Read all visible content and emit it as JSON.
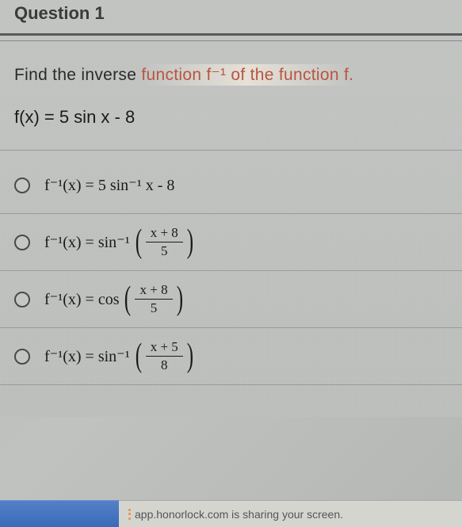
{
  "header": {
    "title": "Question 1"
  },
  "prompt": {
    "prefix": "Find the inverse ",
    "highlighted": "function f⁻¹ of the function f."
  },
  "function_def": "f(x) = 5 sin x - 8",
  "options": [
    {
      "lhs": "f⁻¹(x) = 5 sin⁻¹ x - 8",
      "has_fraction": false
    },
    {
      "lhs": "f⁻¹(x) = sin⁻¹",
      "has_fraction": true,
      "numerator": "x + 8",
      "denominator": "5"
    },
    {
      "lhs": "f⁻¹(x) = cos",
      "has_fraction": true,
      "numerator": "x + 8",
      "denominator": "5"
    },
    {
      "lhs": "f⁻¹(x) = sin⁻¹",
      "has_fraction": true,
      "numerator": "x + 5",
      "denominator": "8"
    }
  ],
  "notification": {
    "text": "app.honorlock.com is sharing your screen."
  },
  "colors": {
    "background": "#bcbebc",
    "text_primary": "#1a1a1a",
    "text_header": "#3a3a3a",
    "highlight_red": "#b85540",
    "divider": "#5a5a5a",
    "option_border": "#9a9a9a",
    "radio_border": "#4a4a4a",
    "bottom_blue": "#3a6ab8",
    "bottom_gray": "#d5d5d0",
    "notif_icon": "#e89550"
  }
}
